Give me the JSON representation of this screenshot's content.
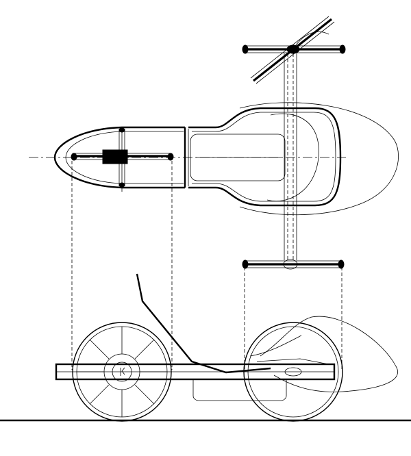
{
  "drawing": {
    "views": [
      "top-view",
      "side-view"
    ],
    "line_color": "#000000",
    "background": "#ffffff"
  }
}
